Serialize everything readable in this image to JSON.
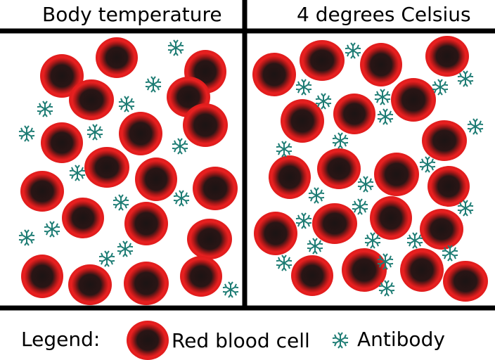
{
  "panels": [
    {
      "title": "Body temperature"
    },
    {
      "title": "4 degrees Celsius"
    }
  ],
  "legend": {
    "label": "Legend:",
    "items": [
      {
        "label": "Red blood cell"
      },
      {
        "label": "Antibody"
      }
    ]
  }
}
